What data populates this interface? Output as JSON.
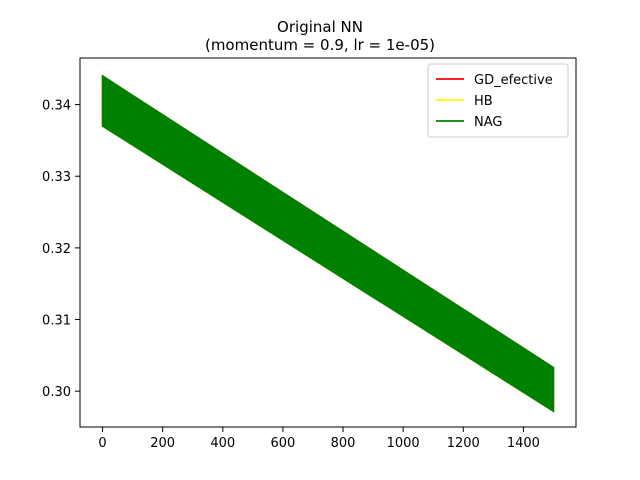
{
  "chart_data": {
    "type": "line",
    "title_line1": "Original NN",
    "title_line2": "(momentum = 0.9, lr = 1e-05)",
    "xlabel": "",
    "ylabel": "",
    "xlim": [
      -75,
      1575
    ],
    "ylim": [
      0.295,
      0.3465
    ],
    "x_ticks": [
      0,
      200,
      400,
      600,
      800,
      1000,
      1200,
      1400
    ],
    "y_ticks": [
      0.3,
      0.31,
      0.32,
      0.33,
      0.34
    ],
    "y_tick_labels": [
      "0.30",
      "0.31",
      "0.32",
      "0.33",
      "0.34"
    ],
    "grid": false,
    "legend_position": "top-right",
    "series": [
      {
        "name": "GD_efective",
        "color": "#ff0000",
        "x": [
          0,
          1500
        ],
        "upper": [
          0.344,
          0.3033
        ],
        "lower": [
          0.337,
          0.2972
        ]
      },
      {
        "name": "HB",
        "color": "#ffff00",
        "x": [
          0,
          1500
        ],
        "upper": [
          0.344,
          0.3033
        ],
        "lower": [
          0.337,
          0.2972
        ]
      },
      {
        "name": "NAG",
        "color": "#008000",
        "x": [
          0,
          1500
        ],
        "upper": [
          0.344,
          0.3033
        ],
        "lower": [
          0.337,
          0.2972
        ]
      }
    ]
  }
}
